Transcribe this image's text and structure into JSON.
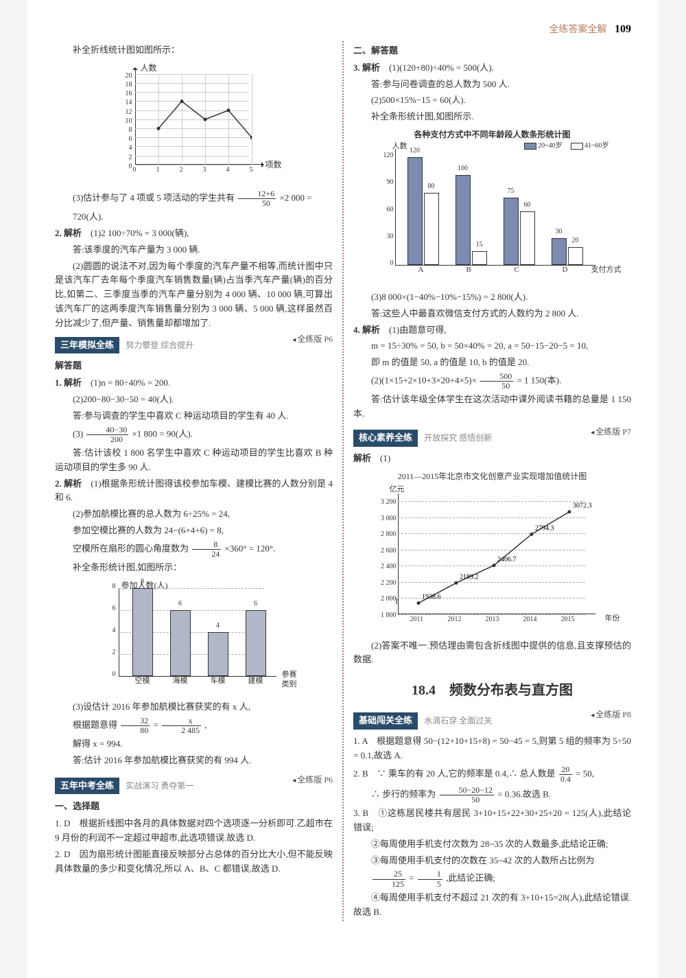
{
  "header": {
    "title": "全练答案全解",
    "page_number": "109"
  },
  "left": {
    "pre_text": "补全折线统计图如图所示：",
    "chart1": {
      "type": "line",
      "y_label": "人数",
      "x_label": "项数",
      "y_ticks": [
        0,
        2,
        4,
        6,
        8,
        10,
        12,
        14,
        16,
        18,
        20
      ],
      "x_ticks": [
        0,
        1,
        2,
        3,
        4,
        5
      ],
      "x_vals": [
        1,
        2,
        3,
        4,
        5
      ],
      "y_vals": [
        8,
        14,
        10,
        12,
        6
      ],
      "line_color": "#333333",
      "grid_color": "#cccccc"
    },
    "l3a": "(3)估计参与了 4 项或 5 项活动的学生共有",
    "frac3": {
      "n": "12+6",
      "d": "50"
    },
    "l3b": "×2 000 =",
    "l3c": "720(人).",
    "q2_label": "2. 解析",
    "q2_1": "(1)2 100÷70% = 3 000(辆),",
    "q2_a": "答:该季度的汽车产量为 3 000 辆.",
    "q2_2": "(2)圆圆的说法不对,因为每个季度的汽车产量不相等,而统计图中只是该汽车厂去年每个季度汽车销售数量(辆)占当季汽车产量(辆)的百分比,如第二、三季度当季的汽车产量分别为 4 000 辆、10 000 辆,可算出该汽车厂的这两季度汽车销售量分别为 3 000 辆、5 000 辆,这样虽然百分比减少了,但产量、销售量却都增加了.",
    "sec3": {
      "title": "三年模拟全练",
      "sub": "努力攀登 综合提升",
      "ref": "全练版 P6"
    },
    "sec3_head": "解答题",
    "s3_q1_label": "1. 解析",
    "s3_q1_1": "(1)n = 80÷40% = 200.",
    "s3_q1_2": "(2)200−80−30−50 = 40(人).",
    "s3_q1_2a": "答:参与调查的学生中喜欢 C 种运动项目的学生有 40 人.",
    "s3_q1_3a": "(3)",
    "frac_s3": {
      "n": "40−30",
      "d": "200"
    },
    "s3_q1_3b": "×1 800 = 90(人).",
    "s3_q1_3c": "答:估计该校 1 800 名学生中喜欢 C 种运动项目的学生比喜欢 B 种运动项目的学生多 90 人.",
    "s3_q2_label": "2. 解析",
    "s3_q2_1": "(1)根据条形统计图得该校参加车模、建模比赛的人数分别是 4 和 6.",
    "s3_q2_2a": "(2)参加航模比赛的总人数为 6÷25% = 24,",
    "s3_q2_2b": "参加空模比赛的人数为 24−(6+4+6) = 8,",
    "s3_q2_2c_a": "空模所在扇形的圆心角度数为",
    "frac_s3b": {
      "n": "8",
      "d": "24"
    },
    "s3_q2_2c_b": "×360° = 120°.",
    "s3_q2_chart_intro": "补全条形统计图,如图所示：",
    "chart3": {
      "type": "bar",
      "y_label": "参加人数(人)",
      "x_label": "参赛\n类别",
      "categories": [
        "空模",
        "海模",
        "车模",
        "建模"
      ],
      "values": [
        8,
        6,
        4,
        6
      ],
      "y_ticks": [
        0,
        2,
        4,
        6,
        8
      ],
      "bar_color": "#b0b8c8"
    },
    "s3_q2_3a": "(3)设估计 2016 年参加航模比赛获奖的有 x 人,",
    "s3_q2_3b_a": "根据题意得",
    "frac_s3c1": {
      "n": "32",
      "d": "80"
    },
    "s3_eq": " = ",
    "frac_s3c2": {
      "n": "x",
      "d": "2 485"
    },
    "s3_comma": ",",
    "s3_q2_3c": "解得 x = 994.",
    "s3_q2_3d": "答:估计 2016 年参加航模比赛获奖的有 994 人.",
    "sec5": {
      "title": "五年中考全练",
      "sub": "实战演习 勇夺第一",
      "ref": "全练版 P6"
    },
    "sec5_head": "一、选择题",
    "s5_q1": "1. D　根据折线图中各月的具体数据对四个选项逐一分析即可.乙超市在 9 月份的利润不一定超过甲超市,此选项错误.故选 D.",
    "s5_q2": "2. D　因为扇形统计图能直接反映部分占总体的百分比大小,但不能反映具体数量的多少和变化情况,所以 A、B、C 都错误,故选 D."
  },
  "right": {
    "head": "二、解答题",
    "r3_label": "3. 解析",
    "r3_1": "(1)(120+80)÷40% = 500(人).",
    "r3_1a": "答:参与问卷调查的总人数为 500 人.",
    "r3_2": "(2)500×15%−15 = 60(人).",
    "r3_2a": "补全条形统计图,如图所示.",
    "chart2": {
      "type": "grouped_bar",
      "title": "各种支付方式中不同年龄段人数条形统计图",
      "y_label": "人数",
      "x_label": "支付方式",
      "categories": [
        "A",
        "B",
        "C",
        "D"
      ],
      "series": [
        {
          "name": "20-40岁",
          "color": "#7a8db0",
          "values": [
            120,
            100,
            75,
            30
          ]
        },
        {
          "name": "41-60岁",
          "color": "#ffffff",
          "values": [
            80,
            15,
            60,
            20
          ]
        }
      ],
      "legend": [
        "20~40岁",
        "41~60岁"
      ],
      "y_ticks": [
        0,
        30,
        60,
        90,
        120
      ]
    },
    "r3_3": "(3)8 000×(1−40%−10%−15%) = 2 800(人).",
    "r3_3a": "答:这些人中最喜欢微信支付方式的人数约为 2 800 人.",
    "r4_label": "4. 解析",
    "r4_1": "(1)由题意可得,",
    "r4_1b": "m = 15÷30% = 50, b = 50×40% = 20, a = 50−15−20−5 = 10,",
    "r4_1c": "即 m 的值是 50, a 的值是 10, b 的值是 20.",
    "r4_2a": "(2)(1×15+2×10+3×20+4×5)×",
    "frac_r4": {
      "n": "500",
      "d": "50"
    },
    "r4_2b": " = 1 150(本).",
    "r4_2c": "答:估计该年级全体学生在这次活动中课外阅读书籍的总量是 1 150 本.",
    "sec_core": {
      "title": "核心素养全练",
      "sub": "开放探究 感悟创新",
      "ref": "全练版 P7"
    },
    "core_label": "解析",
    "core_1": "(1)",
    "chart4": {
      "type": "line",
      "title": "2011—2015年北京市文化创意产业实现增加值统计图",
      "y_label": "亿元",
      "x_label": "年份",
      "x_ticks": [
        "2011",
        "2012",
        "2013",
        "2014",
        "2015"
      ],
      "y_ticks": [
        1800,
        2000,
        2200,
        2400,
        2600,
        2800,
        3000,
        3200
      ],
      "x_vals": [
        2011,
        2012,
        2013,
        2014,
        2015
      ],
      "y_vals": [
        1938.6,
        2189.2,
        2406.7,
        2794.3,
        3072.3
      ],
      "line_color": "#333333",
      "grid_color": "#aaaaaa"
    },
    "core_2": "(2)答案不唯一.预估理由需包含折线图中提供的信息,且支撑预估的数据.",
    "big_title": "18.4　频数分布表与直方图",
    "sec_base": {
      "title": "基础闯关全练",
      "sub": "水滴石穿 全面过关",
      "ref": "全练版 P8"
    },
    "b1": "1. A　根据题意得 50−(12+10+15+8) = 50−45 = 5,则第 5 组的频率为 5÷50 = 0.1,故选 A.",
    "b2a": "2. B　∵ 乘车的有 20 人,它的频率是 0.4,∴ 总人数是",
    "frac_b2a": {
      "n": "20",
      "d": "0.4"
    },
    "b2b": " = 50,",
    "b2c": "∴ 步行的频率为",
    "frac_b2b": {
      "n": "50−20−12",
      "d": "50"
    },
    "b2d": " = 0.36.故选 B.",
    "b3a": "3. B　①这栋居民楼共有居民 3+10+15+22+30+25+20 = 125(人),此结论错误;",
    "b3b": "②每周使用手机支付次数为 28~35 次的人数最多,此结论正确;",
    "b3c": "③每周使用手机支付的次数在 35~42 次的人数所占比例为",
    "frac_b3": {
      "n": "25",
      "d": "125"
    },
    "b3_eq": " = ",
    "frac_b3b": {
      "n": "1",
      "d": "5"
    },
    "b3d": ",此结论正确;",
    "b3e": "④每周使用手机支付不超过 21 次的有 3+10+15=28(人),此结论错误.故选 B."
  }
}
